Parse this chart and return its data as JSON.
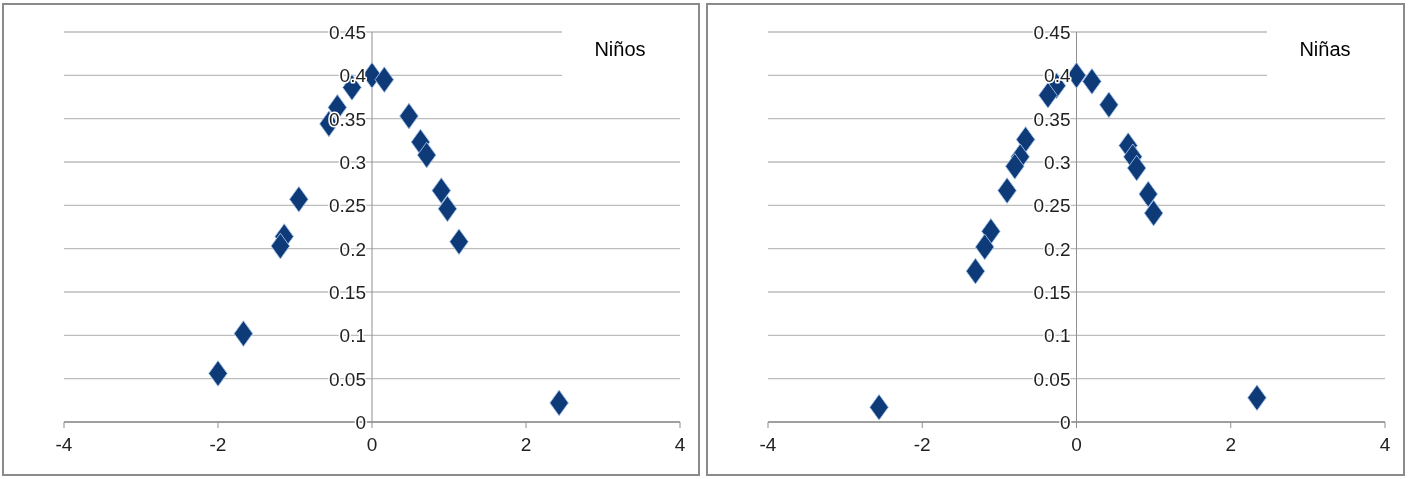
{
  "chart_data": [
    {
      "type": "scatter",
      "title": "Niños",
      "marker": "diamond",
      "grid": "y",
      "xlim": [
        -4,
        4
      ],
      "ylim": [
        0,
        0.45
      ],
      "xticks": [
        -4,
        -2,
        0,
        2,
        4
      ],
      "yticks": [
        0,
        0.05,
        0.1,
        0.15,
        0.2,
        0.25,
        0.3,
        0.35,
        0.4,
        0.45
      ],
      "series": [
        {
          "color": "#0f3a78",
          "x": [
            0,
            0.16,
            -0.26,
            -0.45,
            -0.56,
            0.48,
            0.63,
            0.71,
            0.9,
            0.98,
            1.13,
            -0.95,
            -1.14,
            -1.19,
            -1.67,
            -2.0,
            2.43
          ],
          "values": [
            0.4,
            0.395,
            0.386,
            0.363,
            0.344,
            0.353,
            0.323,
            0.308,
            0.267,
            0.246,
            0.208,
            0.257,
            0.214,
            0.203,
            0.102,
            0.056,
            0.022
          ]
        }
      ]
    },
    {
      "type": "scatter",
      "title": "Niñas",
      "marker": "diamond",
      "grid": "y",
      "xlim": [
        -4,
        4
      ],
      "ylim": [
        0,
        0.45
      ],
      "xticks": [
        -4,
        -2,
        0,
        2,
        4
      ],
      "yticks": [
        0,
        0.05,
        0.1,
        0.15,
        0.2,
        0.25,
        0.3,
        0.35,
        0.4,
        0.45
      ],
      "series": [
        {
          "color": "#0f3a78",
          "x": [
            0,
            0.2,
            -0.26,
            -0.37,
            0.42,
            -0.66,
            -0.73,
            -0.8,
            0.67,
            0.73,
            0.78,
            0.93,
            1.0,
            -0.9,
            -1.11,
            -1.19,
            -1.31,
            -2.56,
            2.34
          ],
          "values": [
            0.4,
            0.393,
            0.388,
            0.377,
            0.366,
            0.326,
            0.306,
            0.295,
            0.319,
            0.306,
            0.293,
            0.263,
            0.241,
            0.267,
            0.22,
            0.202,
            0.174,
            0.017,
            0.028
          ]
        }
      ]
    }
  ]
}
